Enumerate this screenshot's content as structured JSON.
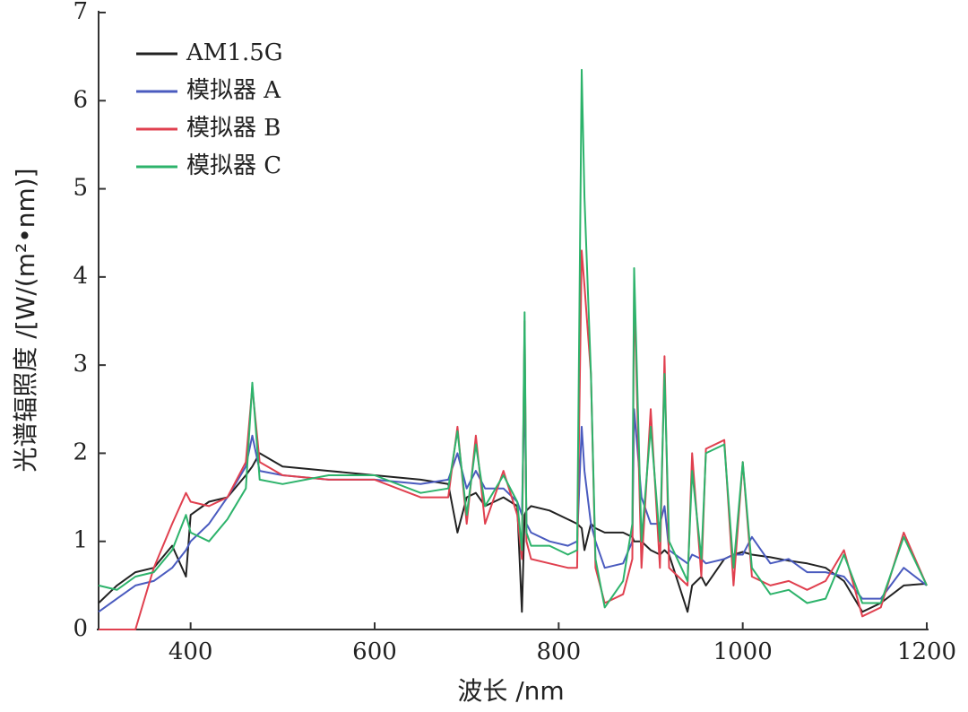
{
  "chart_data": {
    "type": "line",
    "x_label": "波长 /nm",
    "y_label": "光谱辐照度 /[W/(m²•nm)]",
    "xlim": [
      300,
      1200
    ],
    "xticks": [
      400,
      600,
      800,
      1000,
      1200
    ],
    "ylim": [
      0,
      7
    ],
    "yticks": [
      0,
      1,
      2,
      3,
      4,
      5,
      6,
      7
    ],
    "legend": "upper left",
    "x": [
      300,
      320,
      340,
      360,
      380,
      395,
      400,
      420,
      440,
      460,
      467,
      475,
      500,
      550,
      600,
      650,
      680,
      690,
      700,
      710,
      720,
      740,
      755,
      760,
      763,
      765,
      770,
      790,
      810,
      820,
      825,
      828,
      835,
      840,
      850,
      870,
      880,
      882,
      890,
      900,
      910,
      915,
      920,
      940,
      945,
      955,
      960,
      980,
      990,
      1000,
      1010,
      1030,
      1050,
      1070,
      1090,
      1110,
      1130,
      1150,
      1175,
      1200
    ],
    "series": [
      {
        "name": "AM1.5G",
        "color": "#222222",
        "values": [
          0.3,
          0.5,
          0.65,
          0.7,
          0.95,
          0.6,
          1.3,
          1.45,
          1.5,
          1.75,
          1.85,
          2.0,
          1.85,
          1.8,
          1.75,
          1.7,
          1.65,
          1.1,
          1.5,
          1.55,
          1.4,
          1.5,
          1.4,
          0.2,
          1.3,
          1.35,
          1.4,
          1.35,
          1.25,
          1.2,
          1.15,
          0.9,
          1.2,
          1.15,
          1.1,
          1.1,
          1.05,
          1.0,
          1.0,
          0.9,
          0.85,
          0.9,
          0.85,
          0.2,
          0.5,
          0.6,
          0.5,
          0.8,
          0.85,
          0.88,
          0.85,
          0.82,
          0.78,
          0.75,
          0.7,
          0.55,
          0.2,
          0.3,
          0.5,
          0.52
        ]
      },
      {
        "name": "模拟器 A",
        "color": "#4a5bbf",
        "values": [
          0.2,
          0.35,
          0.5,
          0.55,
          0.7,
          0.9,
          1.0,
          1.2,
          1.5,
          1.85,
          2.2,
          1.8,
          1.75,
          1.7,
          1.7,
          1.65,
          1.7,
          2.0,
          1.6,
          1.8,
          1.6,
          1.6,
          1.45,
          1.3,
          2.8,
          1.2,
          1.1,
          1.0,
          0.95,
          1.0,
          2.3,
          1.8,
          1.2,
          1.0,
          0.7,
          0.75,
          1.0,
          2.5,
          1.5,
          1.2,
          1.2,
          1.4,
          0.9,
          0.75,
          0.85,
          0.8,
          0.75,
          0.8,
          0.85,
          0.85,
          1.05,
          0.75,
          0.8,
          0.65,
          0.65,
          0.6,
          0.35,
          0.35,
          0.7,
          0.5
        ]
      },
      {
        "name": "模拟器 B",
        "color": "#e0404f",
        "values": [
          0,
          0,
          0,
          0.7,
          1.2,
          1.55,
          1.45,
          1.4,
          1.5,
          1.9,
          2.75,
          1.9,
          1.75,
          1.7,
          1.7,
          1.5,
          1.5,
          2.3,
          1.2,
          2.2,
          1.2,
          1.8,
          1.3,
          0.8,
          3.5,
          1.0,
          0.8,
          0.75,
          0.7,
          0.7,
          4.3,
          3.9,
          2.9,
          0.7,
          0.3,
          0.4,
          0.8,
          3.9,
          0.7,
          2.5,
          0.7,
          3.1,
          0.7,
          0.5,
          2.0,
          0.6,
          2.05,
          2.15,
          0.5,
          1.9,
          0.6,
          0.5,
          0.55,
          0.45,
          0.55,
          0.9,
          0.15,
          0.25,
          1.1,
          0.5
        ]
      },
      {
        "name": "模拟器 C",
        "color": "#2db36b",
        "values": [
          0.5,
          0.45,
          0.6,
          0.65,
          0.9,
          1.3,
          1.1,
          1.0,
          1.25,
          1.6,
          2.8,
          1.7,
          1.65,
          1.75,
          1.75,
          1.55,
          1.6,
          2.25,
          1.3,
          2.1,
          1.4,
          1.75,
          1.45,
          0.9,
          3.6,
          1.1,
          0.95,
          0.95,
          0.85,
          0.9,
          6.35,
          4.9,
          2.9,
          0.8,
          0.25,
          0.55,
          1.2,
          4.1,
          1.0,
          2.3,
          1.0,
          2.9,
          1.0,
          0.55,
          1.8,
          0.8,
          2.0,
          2.1,
          0.7,
          1.9,
          0.7,
          0.4,
          0.45,
          0.3,
          0.35,
          0.85,
          0.3,
          0.3,
          1.05,
          0.5
        ]
      }
    ]
  }
}
